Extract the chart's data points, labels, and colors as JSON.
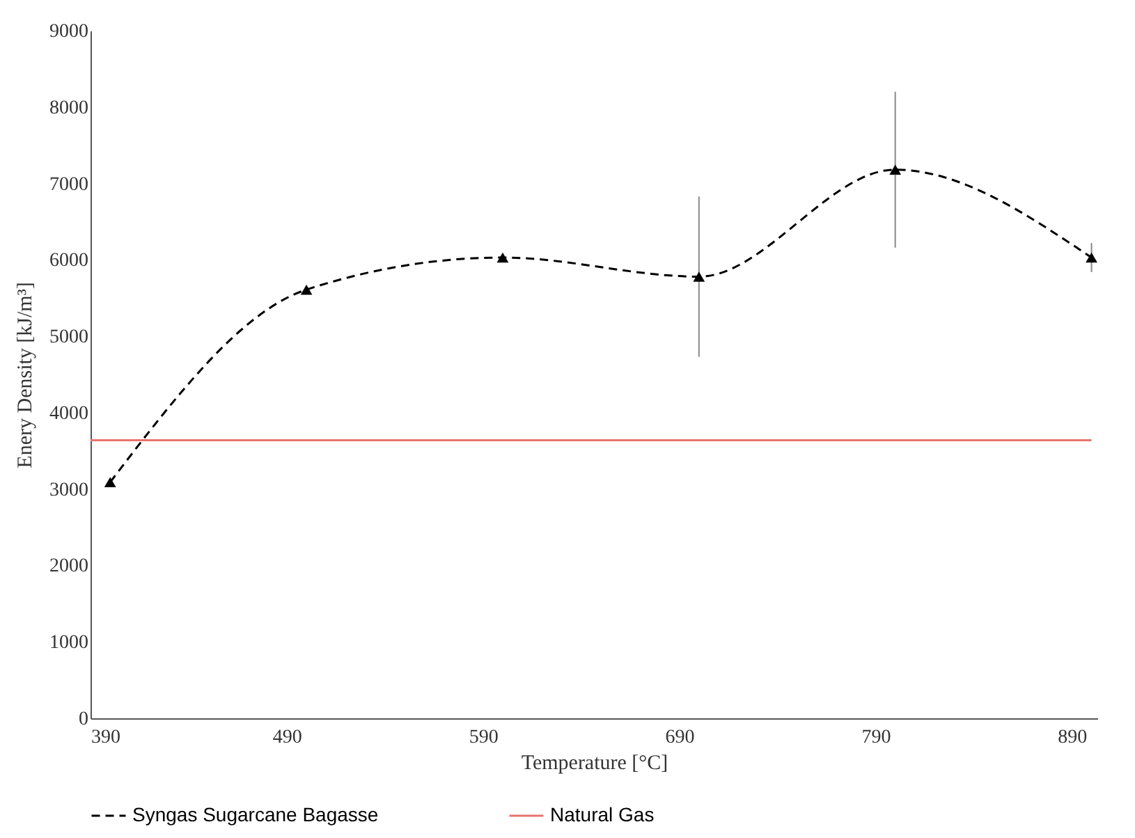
{
  "chart_data": {
    "type": "line",
    "xlabel": "Temperature [°C]",
    "ylabel": "Enery Density [kJ/m³]",
    "x": [
      400,
      500,
      600,
      700,
      800,
      900
    ],
    "series": [
      {
        "name": "Syngas Sugarcane Bagasse",
        "color": "#000000",
        "values": [
          3090,
          5610,
          6030,
          5780,
          7180,
          6030
        ],
        "errors": [
          null,
          null,
          null,
          1050,
          1020,
          190
        ],
        "marker": "triangle",
        "line_style": "dashed"
      },
      {
        "name": "Natural Gas",
        "color": "#e8736c",
        "x": [
          390,
          900
        ],
        "values": [
          3640,
          3640
        ],
        "marker": "none",
        "line_style": "solid"
      }
    ],
    "xlim": [
      390,
      903
    ],
    "xticks": [
      390,
      490,
      590,
      690,
      790,
      890
    ],
    "ylim": [
      0,
      9000
    ],
    "yticks": [
      0,
      1000,
      2000,
      3000,
      4000,
      5000,
      6000,
      7000,
      8000,
      9000
    ],
    "grid": false,
    "legend": "bottom"
  }
}
